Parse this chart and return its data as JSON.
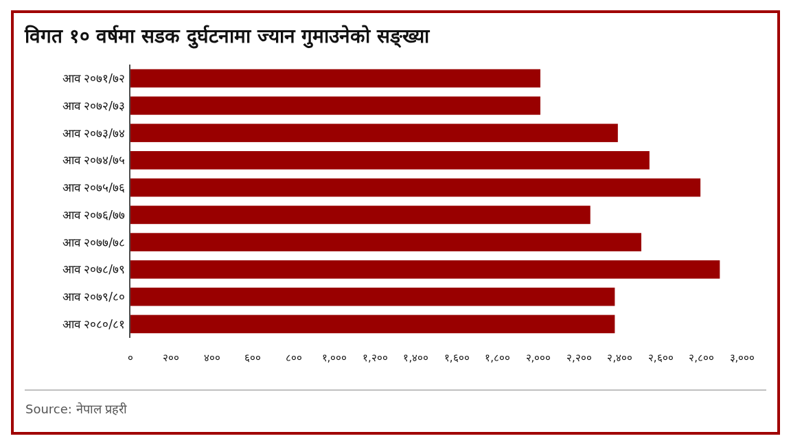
{
  "chart_data": {
    "type": "bar",
    "orientation": "horizontal",
    "title": "विगत १० वर्षमा सडक दुर्घटनामा ज्यान गुमाउनेको सङ्ख्या",
    "categories": [
      "आव २०७१/७२",
      "आव २०७२/७३",
      "आव २०७३/७४",
      "आव २०७४/७५",
      "आव २०७५/७६",
      "आव २०७६/७७",
      "आव २०७७/७८",
      "आव २०७८/७९",
      "आव २०७९/८०",
      "आव २०८०/८१"
    ],
    "values": [
      2010,
      2010,
      2390,
      2545,
      2795,
      2255,
      2505,
      2890,
      2375,
      2375
    ],
    "color": "#990000",
    "xlim": [
      0,
      3000
    ],
    "xticks": [
      {
        "value": 0,
        "label": "०"
      },
      {
        "value": 200,
        "label": "२००"
      },
      {
        "value": 400,
        "label": "४००"
      },
      {
        "value": 600,
        "label": "६००"
      },
      {
        "value": 800,
        "label": "८००"
      },
      {
        "value": 1000,
        "label": "१,०००"
      },
      {
        "value": 1200,
        "label": "१,२००"
      },
      {
        "value": 1400,
        "label": "१,४००"
      },
      {
        "value": 1600,
        "label": "१,६००"
      },
      {
        "value": 1800,
        "label": "१,८००"
      },
      {
        "value": 2000,
        "label": "२,०००"
      },
      {
        "value": 2200,
        "label": "२,२००"
      },
      {
        "value": 2400,
        "label": "२,४००"
      },
      {
        "value": 2600,
        "label": "२,६००"
      },
      {
        "value": 2800,
        "label": "२,८००"
      },
      {
        "value": 3000,
        "label": "३,०००"
      }
    ],
    "grid": false,
    "annotations": [
      "Source: नेपाल प्रहरी"
    ]
  }
}
